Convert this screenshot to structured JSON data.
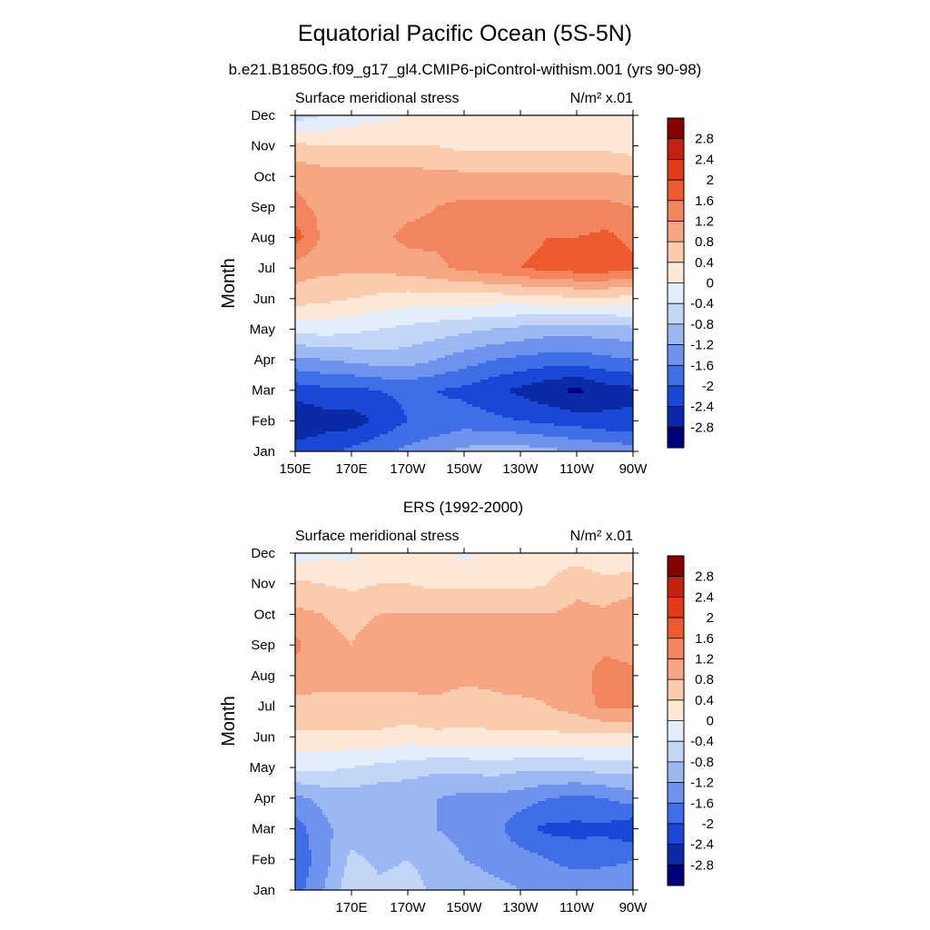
{
  "figure": {
    "title": "Equatorial Pacific Ocean (5S-5N)",
    "subtitle_top": "b.e21.B1850G.f09_g17_gl4.CMIP6-piControl-withism.001 (yrs 90-98)",
    "subtitle_bottom": "ERS (1992-2000)"
  },
  "colors": {
    "colorbar": [
      "#00007f",
      "#0b2aa6",
      "#1a48d6",
      "#3f6ee6",
      "#6e93ee",
      "#9bb8f3",
      "#c3d6f8",
      "#e3eefc",
      "#fde8d8",
      "#fbcbae",
      "#f6a683",
      "#f2845e",
      "#ee5a30",
      "#e23a1a",
      "#c22310",
      "#870000"
    ],
    "frame": "#000000"
  },
  "chart_data": [
    {
      "type": "heatmap",
      "title": "Surface meridional stress",
      "units_label": "N/m² x.01",
      "ylabel": "Month",
      "x_ticks": [
        "150E",
        "170E",
        "170W",
        "150W",
        "130W",
        "110W",
        "90W"
      ],
      "y_ticks": [
        "Jan",
        "Feb",
        "Mar",
        "Apr",
        "May",
        "Jun",
        "Jul",
        "Aug",
        "Sep",
        "Oct",
        "Nov",
        "Dec"
      ],
      "x": [
        "150E",
        "160E",
        "170E",
        "180",
        "170W",
        "160W",
        "150W",
        "140W",
        "130W",
        "120W",
        "110W",
        "100W",
        "90W"
      ],
      "y": [
        "Jan",
        "Feb",
        "Mar",
        "Apr",
        "May",
        "Jun",
        "Jul",
        "Aug",
        "Sep",
        "Oct",
        "Nov",
        "Dec"
      ],
      "z": [
        [
          -2.2,
          -2.1,
          -1.9,
          -1.7,
          -1.5,
          -1.3,
          -1.1,
          -1.0,
          -1.0,
          -1.1,
          -1.2,
          -1.3,
          -1.4
        ],
        [
          -2.8,
          -2.6,
          -2.6,
          -2.3,
          -2.0,
          -1.9,
          -1.8,
          -1.9,
          -2.0,
          -2.1,
          -2.2,
          -2.3,
          -2.3
        ],
        [
          -2.2,
          -2.1,
          -2.1,
          -2.0,
          -1.9,
          -2.0,
          -2.1,
          -2.3,
          -2.5,
          -2.7,
          -2.9,
          -2.6,
          -2.5
        ],
        [
          -1.3,
          -1.2,
          -1.1,
          -1.0,
          -1.0,
          -1.2,
          -1.4,
          -1.6,
          -1.7,
          -1.8,
          -1.8,
          -1.7,
          -1.6
        ],
        [
          -0.3,
          -0.2,
          -0.3,
          -0.4,
          -0.5,
          -0.6,
          -0.7,
          -0.8,
          -0.9,
          -1.0,
          -1.0,
          -1.0,
          -0.9
        ],
        [
          0.6,
          0.5,
          0.4,
          0.3,
          0.2,
          0.2,
          0.2,
          0.2,
          0.2,
          0.3,
          0.3,
          0.3,
          0.3
        ],
        [
          1.0,
          0.9,
          0.9,
          0.9,
          1.0,
          1.1,
          1.3,
          1.4,
          1.6,
          1.7,
          1.8,
          1.8,
          1.7
        ],
        [
          1.8,
          1.1,
          1.1,
          1.1,
          1.3,
          1.3,
          1.4,
          1.5,
          1.5,
          1.6,
          1.6,
          1.7,
          1.5
        ],
        [
          1.3,
          1.1,
          1.0,
          1.0,
          1.1,
          1.2,
          1.3,
          1.3,
          1.3,
          1.3,
          1.3,
          1.3,
          1.2
        ],
        [
          1.1,
          1.0,
          1.0,
          1.0,
          1.0,
          0.9,
          0.9,
          0.9,
          0.9,
          0.9,
          0.9,
          0.9,
          0.8
        ],
        [
          0.5,
          0.4,
          0.4,
          0.4,
          0.4,
          0.4,
          0.3,
          0.3,
          0.3,
          0.3,
          0.3,
          0.3,
          0.2
        ],
        [
          -0.6,
          -0.4,
          -0.2,
          -0.1,
          0.0,
          0.1,
          0.2,
          0.2,
          0.2,
          0.1,
          0.1,
          0.0,
          0.0
        ]
      ],
      "colorbar": {
        "levels": [
          -2.8,
          -2.4,
          -2,
          -1.6,
          -1.2,
          -0.8,
          -0.4,
          0,
          0.4,
          0.8,
          1.2,
          1.6,
          2,
          2.4,
          2.8
        ],
        "labels": [
          "-2.8",
          "-2.4",
          "-2",
          "-1.6",
          "-1.2",
          "-0.8",
          "-0.4",
          "0",
          "0.4",
          "0.8",
          "1.2",
          "1.6",
          "2",
          "2.4",
          "2.8"
        ]
      }
    },
    {
      "type": "heatmap",
      "title": "Surface meridional stress",
      "units_label": "N/m² x.01",
      "ylabel": "Month",
      "x_ticks": [
        "170E",
        "170W",
        "150W",
        "130W",
        "110W",
        "90W"
      ],
      "y_ticks": [
        "Jan",
        "Feb",
        "Mar",
        "Apr",
        "May",
        "Jun",
        "Jul",
        "Aug",
        "Sep",
        "Oct",
        "Nov",
        "Dec"
      ],
      "x": [
        "150E",
        "160E",
        "170E",
        "180",
        "170W",
        "160W",
        "150W",
        "140W",
        "130W",
        "120W",
        "110W",
        "100W",
        "90W"
      ],
      "y": [
        "Jan",
        "Feb",
        "Mar",
        "Apr",
        "May",
        "Jun",
        "Jul",
        "Aug",
        "Sep",
        "Oct",
        "Nov",
        "Dec"
      ],
      "z": [
        [
          -1.8,
          -1.2,
          -0.5,
          -0.7,
          -0.6,
          -0.9,
          -1.0,
          -1.1,
          -1.2,
          -1.3,
          -1.2,
          -1.3,
          -1.4
        ],
        [
          -1.9,
          -1.4,
          -0.7,
          -0.9,
          -0.8,
          -1.0,
          -1.2,
          -1.3,
          -1.4,
          -1.6,
          -1.8,
          -1.7,
          -1.6
        ],
        [
          -1.8,
          -1.3,
          -1.0,
          -1.1,
          -1.0,
          -1.2,
          -1.3,
          -1.4,
          -1.9,
          -2.1,
          -2.1,
          -2.1,
          -2.3
        ],
        [
          -1.3,
          -1.1,
          -1.0,
          -1.1,
          -1.1,
          -1.2,
          -1.3,
          -1.3,
          -1.4,
          -1.6,
          -1.7,
          -1.6,
          -1.4
        ],
        [
          -0.3,
          -0.3,
          -0.4,
          -0.5,
          -0.6,
          -0.7,
          -0.7,
          -0.6,
          -0.7,
          -0.7,
          -0.7,
          -0.6,
          -0.6
        ],
        [
          0.3,
          0.3,
          0.3,
          0.3,
          0.2,
          0.3,
          0.3,
          0.3,
          0.3,
          0.3,
          0.3,
          0.3,
          0.3
        ],
        [
          0.7,
          0.7,
          0.7,
          0.7,
          0.7,
          0.7,
          0.6,
          0.7,
          0.7,
          0.8,
          1.0,
          1.3,
          1.3
        ],
        [
          1.0,
          0.9,
          0.9,
          0.9,
          0.9,
          1.0,
          0.9,
          0.9,
          1.0,
          0.9,
          1.0,
          1.4,
          1.3
        ],
        [
          1.3,
          0.9,
          0.8,
          1.0,
          1.0,
          1.0,
          0.9,
          0.9,
          1.0,
          0.9,
          0.9,
          1.1,
          1.0
        ],
        [
          0.9,
          0.8,
          0.7,
          0.8,
          0.8,
          0.8,
          0.8,
          0.8,
          0.8,
          0.8,
          0.9,
          0.9,
          1.1
        ],
        [
          0.5,
          0.4,
          0.3,
          0.4,
          0.4,
          0.3,
          0.3,
          0.3,
          0.3,
          0.4,
          0.7,
          0.5,
          0.6
        ],
        [
          -0.2,
          -0.1,
          -0.1,
          0.1,
          0.1,
          0.1,
          -0.1,
          0.1,
          0.1,
          0.2,
          0.2,
          0.1,
          0.1
        ]
      ],
      "colorbar": {
        "levels": [
          -2.8,
          -2.4,
          -2,
          -1.6,
          -1.2,
          -0.8,
          -0.4,
          0,
          0.4,
          0.8,
          1.2,
          1.6,
          2,
          2.4,
          2.8
        ],
        "labels": [
          "-2.8",
          "-2.4",
          "-2",
          "-1.6",
          "-1.2",
          "-0.8",
          "-0.4",
          "0",
          "0.4",
          "0.8",
          "1.2",
          "1.6",
          "2",
          "2.4",
          "2.8"
        ]
      }
    }
  ]
}
